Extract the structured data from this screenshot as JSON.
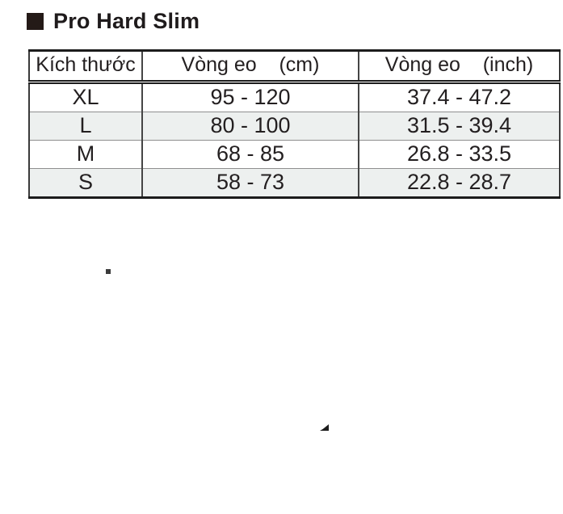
{
  "title": {
    "text": "Pro Hard Slim"
  },
  "table": {
    "columns": [
      {
        "label": "Kích thước"
      },
      {
        "label": "Vòng eo    (cm)"
      },
      {
        "label": "Vòng eo    (inch)"
      }
    ],
    "rows": [
      {
        "size": "XL",
        "cm": "95 - 120",
        "inch": "37.4 - 47.2"
      },
      {
        "size": "L",
        "cm": "80 - 100",
        "inch": "31.5 - 39.4"
      },
      {
        "size": "M",
        "cm": "68 - 85",
        "inch": "26.8 - 33.5"
      },
      {
        "size": "S",
        "cm": "58 - 73",
        "inch": "22.8 - 28.7"
      }
    ],
    "colors": {
      "striped_row_background": "#edf0ef",
      "border": "#1c1c1c",
      "text": "#231f20",
      "title_bullet": "#241a17"
    }
  }
}
